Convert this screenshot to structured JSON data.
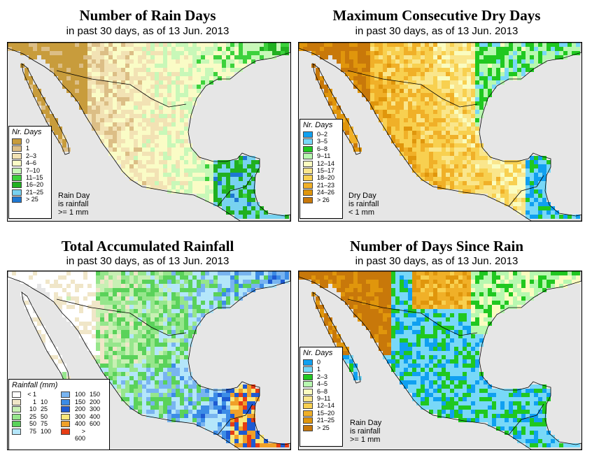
{
  "panels": [
    {
      "title": "Number of Rain Days",
      "subtitle": "in past 30 days, as of  13 Jun. 2013"
    },
    {
      "title": "Maximum Consecutive Dry Days",
      "subtitle": "in past 30 days, as of  13 Jun. 2013"
    },
    {
      "title": "Total Accumulated Rainfall",
      "subtitle": "in past 30 days, as of  13 Jun. 2013"
    },
    {
      "title": "Number of Days Since Rain",
      "subtitle": "in past 30 days, as of  13 Jun. 2013"
    }
  ],
  "legend_rain_days": {
    "title": "Nr. Days",
    "items": [
      {
        "label": "0",
        "color": "#c89c3c"
      },
      {
        "label": "1",
        "color": "#dcbe86"
      },
      {
        "label": "2–3",
        "color": "#f2e2b4"
      },
      {
        "label": "4–6",
        "color": "#fafcc6"
      },
      {
        "label": "7–10",
        "color": "#c8f8b8"
      },
      {
        "label": "11–15",
        "color": "#3cd23c"
      },
      {
        "label": "16–20",
        "color": "#20b020"
      },
      {
        "label": "21–25",
        "color": "#78d2f0"
      },
      {
        "label": "> 25",
        "color": "#1e78d2"
      }
    ],
    "note": [
      "Rain Day",
      "is rainfall",
      ">= 1 mm"
    ]
  },
  "legend_dry_days": {
    "title": "Nr. Days",
    "items": [
      {
        "label": "0–2",
        "color": "#10a0f0"
      },
      {
        "label": "3–5",
        "color": "#78d8f8"
      },
      {
        "label": "6–8",
        "color": "#20c820"
      },
      {
        "label": "9–11",
        "color": "#b8f8b0"
      },
      {
        "label": "12–14",
        "color": "#fafcc0"
      },
      {
        "label": "15–17",
        "color": "#fae68c"
      },
      {
        "label": "18–20",
        "color": "#f8d050"
      },
      {
        "label": "21–23",
        "color": "#f0b028"
      },
      {
        "label": "24–26",
        "color": "#e0960c"
      },
      {
        "label": "> 26",
        "color": "#c8780a"
      }
    ],
    "note": [
      "Dry Day",
      "is rainfall",
      "< 1 mm"
    ]
  },
  "legend_rainfall": {
    "title": "Rainfall (mm)",
    "left": [
      {
        "lo": "< 1",
        "hi": "",
        "color": "#ffffff"
      },
      {
        "lo": "1",
        "hi": "10",
        "color": "#f0e6c8"
      },
      {
        "lo": "10",
        "hi": "25",
        "color": "#c8f0b4"
      },
      {
        "lo": "25",
        "hi": "50",
        "color": "#96e68c"
      },
      {
        "lo": "50",
        "hi": "75",
        "color": "#5ad25a"
      },
      {
        "lo": "75",
        "hi": "100",
        "color": "#b4e6fa"
      }
    ],
    "right": [
      {
        "lo": "100",
        "hi": "150",
        "color": "#78b4f0"
      },
      {
        "lo": "150",
        "hi": "200",
        "color": "#3c8ce6"
      },
      {
        "lo": "200",
        "hi": "300",
        "color": "#1e5ad2"
      },
      {
        "lo": "300",
        "hi": "400",
        "color": "#fae678"
      },
      {
        "lo": "400",
        "hi": "600",
        "color": "#f0a028"
      },
      {
        "lo": "> 600",
        "hi": "",
        "color": "#e63c14"
      }
    ]
  },
  "legend_since_rain": {
    "title": "Nr. Days",
    "items": [
      {
        "label": "0",
        "color": "#10a0f0"
      },
      {
        "label": "1",
        "color": "#78d8f8"
      },
      {
        "label": "2–3",
        "color": "#20c820"
      },
      {
        "label": "4–5",
        "color": "#b8f8b0"
      },
      {
        "label": "6–8",
        "color": "#fafcc0"
      },
      {
        "label": "9–11",
        "color": "#fae68c"
      },
      {
        "label": "12–14",
        "color": "#f8d050"
      },
      {
        "label": "15–20",
        "color": "#f0b028"
      },
      {
        "label": "21–25",
        "color": "#e0960c"
      },
      {
        "label": "> 25",
        "color": "#c8780a"
      }
    ],
    "note": [
      "Rain Day",
      "is rainfall",
      ">= 1 mm"
    ]
  }
}
